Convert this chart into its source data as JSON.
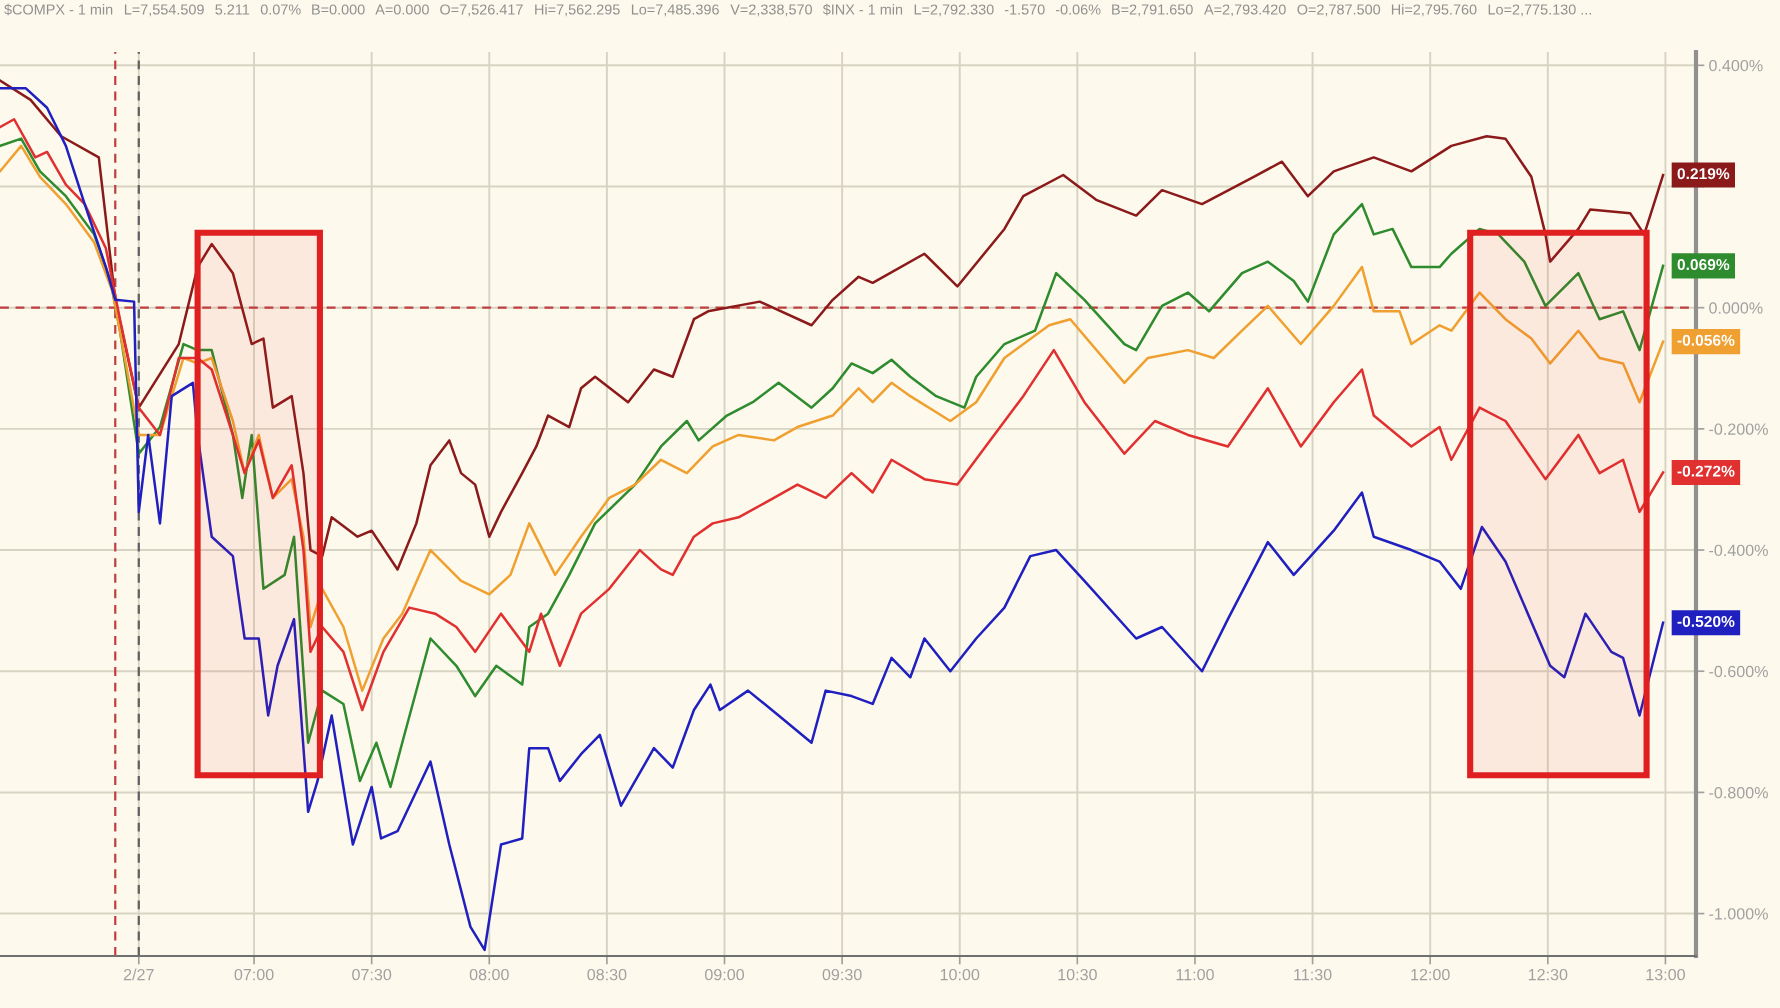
{
  "chart_data": {
    "type": "line",
    "annotations": [
      "$COMPX - 1 min",
      "L=7,554.509",
      "5.211",
      "0.07%",
      "B=0.000",
      "A=0.000",
      "O=7,526.417",
      "Hi=7,562.295",
      "Lo=7,485.396",
      "V=2,338,570",
      "$INX - 1 min",
      "L=2,792.330",
      "-1.570",
      "-0.06%",
      "B=2,791.650",
      "A=2,793.420",
      "O=2,787.500",
      "Hi=2,795.760",
      "Lo=2,775.130 ..."
    ],
    "series": [
      {
        "color": "#8b1a1a",
        "x": [
          5.92,
          6.05,
          6.18,
          6.34,
          6.41,
          6.51,
          6.68,
          6.76,
          6.82,
          6.91,
          6.99,
          7.04,
          7.08,
          7.16,
          7.21,
          7.24,
          7.29,
          7.33,
          7.44,
          7.5,
          7.61,
          7.69,
          7.75,
          7.83,
          7.88,
          7.94,
          8.0,
          8.05,
          8.14,
          8.2,
          8.25,
          8.34,
          8.39,
          8.45,
          8.59,
          8.7,
          8.78,
          8.87,
          8.93,
          9.15,
          9.37,
          9.46,
          9.57,
          9.63,
          9.85,
          9.99,
          10.19,
          10.27,
          10.44,
          10.58,
          10.75,
          10.86,
          11.03,
          11.25,
          11.37,
          11.48,
          11.59,
          11.76,
          11.92,
          12.09,
          12.24,
          12.32,
          12.43,
          12.49,
          12.51,
          12.63,
          12.68,
          12.85,
          12.91,
          12.99
        ],
        "values": [
          0.375,
          0.343,
          0.283,
          0.248,
          0.013,
          -0.165,
          -0.06,
          0.067,
          0.105,
          0.057,
          -0.06,
          -0.051,
          -0.165,
          -0.146,
          -0.273,
          -0.4,
          -0.41,
          -0.346,
          -0.378,
          -0.368,
          -0.432,
          -0.356,
          -0.26,
          -0.219,
          -0.273,
          -0.292,
          -0.378,
          -0.337,
          -0.273,
          -0.229,
          -0.178,
          -0.197,
          -0.133,
          -0.114,
          -0.156,
          -0.102,
          -0.114,
          -0.019,
          -0.006,
          0.01,
          -0.029,
          0.013,
          0.051,
          0.041,
          0.089,
          0.035,
          0.13,
          0.184,
          0.219,
          0.178,
          0.152,
          0.194,
          0.171,
          0.216,
          0.241,
          0.184,
          0.225,
          0.248,
          0.225,
          0.267,
          0.283,
          0.279,
          0.216,
          0.121,
          0.076,
          0.13,
          0.162,
          0.156,
          0.121,
          0.219
        ],
        "value_labels": [
          null,
          null,
          null,
          null,
          null,
          null,
          null,
          null,
          null,
          null,
          null,
          null,
          null,
          null,
          null,
          null,
          null,
          null,
          null,
          null,
          null,
          null,
          null,
          null,
          null,
          null,
          null,
          null,
          null,
          null,
          null,
          null,
          null,
          null,
          null,
          null,
          null,
          null,
          null,
          null,
          null,
          null,
          null,
          null,
          null,
          null,
          null,
          null,
          null,
          null,
          null,
          null,
          null,
          null,
          null,
          null,
          null,
          null,
          null,
          null,
          null,
          null,
          null,
          null,
          null,
          null,
          null,
          null,
          null,
          "0.219%"
        ]
      },
      {
        "color": "#2e8b2e",
        "x": [
          5.92,
          6.01,
          6.09,
          6.2,
          6.32,
          6.39,
          6.43,
          6.51,
          6.6,
          6.7,
          6.76,
          6.82,
          6.91,
          6.95,
          6.99,
          7.04,
          7.13,
          7.17,
          7.23,
          7.29,
          7.38,
          7.45,
          7.52,
          7.58,
          7.63,
          7.75,
          7.86,
          7.94,
          8.03,
          8.14,
          8.17,
          8.25,
          8.34,
          8.45,
          8.62,
          8.73,
          8.84,
          8.89,
          9.01,
          9.12,
          9.23,
          9.37,
          9.46,
          9.54,
          9.63,
          9.71,
          9.79,
          9.9,
          10.02,
          10.07,
          10.19,
          10.32,
          10.41,
          10.53,
          10.7,
          10.75,
          10.86,
          10.97,
          11.06,
          11.2,
          11.31,
          11.42,
          11.48,
          11.59,
          11.71,
          11.76,
          11.84,
          11.92,
          12.04,
          12.09,
          12.21,
          12.29,
          12.4,
          12.49,
          12.63,
          12.72,
          12.82,
          12.89,
          12.99
        ],
        "values": [
          0.267,
          0.279,
          0.225,
          0.184,
          0.121,
          0.044,
          -0.038,
          -0.241,
          -0.197,
          -0.06,
          -0.07,
          -0.07,
          -0.21,
          -0.314,
          -0.21,
          -0.464,
          -0.441,
          -0.378,
          -0.718,
          -0.632,
          -0.654,
          -0.781,
          -0.718,
          -0.791,
          -0.718,
          -0.546,
          -0.591,
          -0.641,
          -0.591,
          -0.622,
          -0.527,
          -0.505,
          -0.441,
          -0.356,
          -0.292,
          -0.229,
          -0.187,
          -0.219,
          -0.178,
          -0.156,
          -0.124,
          -0.165,
          -0.133,
          -0.092,
          -0.108,
          -0.086,
          -0.114,
          -0.146,
          -0.165,
          -0.114,
          -0.06,
          -0.038,
          0.057,
          0.013,
          -0.06,
          -0.07,
          0.003,
          0.025,
          -0.006,
          0.057,
          0.076,
          0.044,
          0.01,
          0.121,
          0.171,
          0.121,
          0.13,
          0.067,
          0.067,
          0.089,
          0.13,
          0.121,
          0.076,
          0.003,
          0.057,
          -0.019,
          -0.006,
          -0.07,
          0.069
        ],
        "value_labels": [
          null,
          null,
          null,
          null,
          null,
          null,
          null,
          null,
          null,
          null,
          null,
          null,
          null,
          null,
          null,
          null,
          null,
          null,
          null,
          null,
          null,
          null,
          null,
          null,
          null,
          null,
          null,
          null,
          null,
          null,
          null,
          null,
          null,
          null,
          null,
          null,
          null,
          null,
          null,
          null,
          null,
          null,
          null,
          null,
          null,
          null,
          null,
          null,
          null,
          null,
          null,
          null,
          null,
          null,
          null,
          null,
          null,
          null,
          null,
          null,
          null,
          null,
          null,
          null,
          null,
          null,
          null,
          null,
          null,
          null,
          null,
          null,
          null,
          null,
          null,
          null,
          null,
          null,
          "0.069%"
        ]
      },
      {
        "color": "#f0a030",
        "x": [
          5.92,
          6.01,
          6.09,
          6.2,
          6.32,
          6.4,
          6.51,
          6.6,
          6.7,
          6.76,
          6.82,
          6.91,
          6.96,
          7.02,
          7.08,
          7.16,
          7.21,
          7.24,
          7.29,
          7.38,
          7.46,
          7.55,
          7.63,
          7.75,
          7.88,
          8.0,
          8.09,
          8.17,
          8.28,
          8.39,
          8.51,
          8.62,
          8.73,
          8.84,
          8.95,
          9.06,
          9.21,
          9.31,
          9.46,
          9.57,
          9.63,
          9.71,
          9.79,
          9.96,
          10.07,
          10.19,
          10.38,
          10.47,
          10.7,
          10.8,
          10.97,
          11.08,
          11.2,
          11.31,
          11.45,
          11.59,
          11.71,
          11.76,
          11.87,
          11.92,
          12.04,
          12.09,
          12.21,
          12.32,
          12.43,
          12.51,
          12.63,
          12.72,
          12.82,
          12.89,
          12.99
        ],
        "values": [
          0.225,
          0.267,
          0.216,
          0.171,
          0.108,
          0.025,
          -0.21,
          -0.21,
          -0.083,
          -0.092,
          -0.083,
          -0.187,
          -0.273,
          -0.21,
          -0.314,
          -0.283,
          -0.378,
          -0.527,
          -0.464,
          -0.527,
          -0.632,
          -0.546,
          -0.505,
          -0.4,
          -0.451,
          -0.473,
          -0.441,
          -0.356,
          -0.441,
          -0.378,
          -0.314,
          -0.292,
          -0.251,
          -0.273,
          -0.229,
          -0.21,
          -0.219,
          -0.197,
          -0.178,
          -0.133,
          -0.156,
          -0.124,
          -0.146,
          -0.187,
          -0.156,
          -0.083,
          -0.029,
          -0.019,
          -0.124,
          -0.083,
          -0.07,
          -0.083,
          -0.038,
          0.003,
          -0.06,
          0.003,
          0.067,
          -0.006,
          -0.006,
          -0.06,
          -0.029,
          -0.038,
          0.025,
          -0.019,
          -0.051,
          -0.092,
          -0.038,
          -0.083,
          -0.092,
          -0.156,
          -0.056
        ],
        "value_labels": [
          null,
          null,
          null,
          null,
          null,
          null,
          null,
          null,
          null,
          null,
          null,
          null,
          null,
          null,
          null,
          null,
          null,
          null,
          null,
          null,
          null,
          null,
          null,
          null,
          null,
          null,
          null,
          null,
          null,
          null,
          null,
          null,
          null,
          null,
          null,
          null,
          null,
          null,
          null,
          null,
          null,
          null,
          null,
          null,
          null,
          null,
          null,
          null,
          null,
          null,
          null,
          null,
          null,
          null,
          null,
          null,
          null,
          null,
          null,
          null,
          null,
          null,
          null,
          null,
          null,
          null,
          null,
          null,
          null,
          null,
          "-0.056%"
        ]
      },
      {
        "color": "#e03030",
        "x": [
          5.92,
          5.98,
          6.07,
          6.12,
          6.2,
          6.28,
          6.37,
          6.43,
          6.51,
          6.6,
          6.68,
          6.76,
          6.82,
          6.91,
          6.96,
          7.02,
          7.08,
          7.16,
          7.21,
          7.24,
          7.29,
          7.38,
          7.46,
          7.55,
          7.66,
          7.77,
          7.86,
          7.94,
          8.05,
          8.17,
          8.22,
          8.3,
          8.39,
          8.51,
          8.64,
          8.73,
          8.78,
          8.87,
          8.95,
          9.06,
          9.21,
          9.31,
          9.43,
          9.54,
          9.63,
          9.71,
          9.85,
          9.99,
          10.11,
          10.27,
          10.4,
          10.53,
          10.7,
          10.83,
          10.97,
          11.14,
          11.31,
          11.45,
          11.59,
          11.71,
          11.76,
          11.92,
          12.04,
          12.09,
          12.21,
          12.32,
          12.49,
          12.63,
          12.72,
          12.82,
          12.89,
          12.99
        ],
        "values": [
          0.298,
          0.311,
          0.248,
          0.257,
          0.203,
          0.171,
          0.098,
          -0.019,
          -0.165,
          -0.21,
          -0.083,
          -0.083,
          -0.102,
          -0.21,
          -0.273,
          -0.219,
          -0.314,
          -0.26,
          -0.4,
          -0.568,
          -0.527,
          -0.568,
          -0.664,
          -0.568,
          -0.495,
          -0.505,
          -0.527,
          -0.568,
          -0.505,
          -0.568,
          -0.505,
          -0.591,
          -0.505,
          -0.464,
          -0.4,
          -0.432,
          -0.441,
          -0.378,
          -0.356,
          -0.346,
          -0.314,
          -0.292,
          -0.314,
          -0.273,
          -0.305,
          -0.251,
          -0.283,
          -0.292,
          -0.229,
          -0.146,
          -0.07,
          -0.156,
          -0.241,
          -0.187,
          -0.21,
          -0.229,
          -0.133,
          -0.229,
          -0.156,
          -0.102,
          -0.178,
          -0.229,
          -0.197,
          -0.251,
          -0.165,
          -0.187,
          -0.283,
          -0.21,
          -0.273,
          -0.251,
          -0.337,
          -0.272
        ],
        "value_labels": [
          null,
          null,
          null,
          null,
          null,
          null,
          null,
          null,
          null,
          null,
          null,
          null,
          null,
          null,
          null,
          null,
          null,
          null,
          null,
          null,
          null,
          null,
          null,
          null,
          null,
          null,
          null,
          null,
          null,
          null,
          null,
          null,
          null,
          null,
          null,
          null,
          null,
          null,
          null,
          null,
          null,
          null,
          null,
          null,
          null,
          null,
          null,
          null,
          null,
          null,
          null,
          null,
          null,
          null,
          null,
          null,
          null,
          null,
          null,
          null,
          null,
          null,
          null,
          null,
          null,
          null,
          null,
          null,
          null,
          null,
          null,
          "-0.272%"
        ]
      },
      {
        "color": "#2020c0",
        "x": [
          5.92,
          6.03,
          6.12,
          6.2,
          6.28,
          6.37,
          6.41,
          6.49,
          6.51,
          6.55,
          6.6,
          6.65,
          6.74,
          6.76,
          6.82,
          6.91,
          6.96,
          7.02,
          7.06,
          7.1,
          7.17,
          7.23,
          7.27,
          7.33,
          7.42,
          7.5,
          7.54,
          7.61,
          7.75,
          7.83,
          7.92,
          7.98,
          8.05,
          8.14,
          8.17,
          8.25,
          8.3,
          8.39,
          8.47,
          8.56,
          8.7,
          8.78,
          8.87,
          8.94,
          8.98,
          9.1,
          9.23,
          9.37,
          9.43,
          9.54,
          9.63,
          9.71,
          9.79,
          9.85,
          9.96,
          10.07,
          10.19,
          10.3,
          10.41,
          10.53,
          10.75,
          10.86,
          11.03,
          11.14,
          11.31,
          11.42,
          11.59,
          11.71,
          11.76,
          11.92,
          12.04,
          12.13,
          12.22,
          12.32,
          12.51,
          12.57,
          12.66,
          12.77,
          12.82,
          12.89,
          12.99
        ],
        "values": [
          0.362,
          0.362,
          0.33,
          0.267,
          0.171,
          0.067,
          0.013,
          0.01,
          -0.337,
          -0.21,
          -0.356,
          -0.146,
          -0.124,
          -0.21,
          -0.378,
          -0.41,
          -0.546,
          -0.546,
          -0.673,
          -0.591,
          -0.514,
          -0.832,
          -0.781,
          -0.673,
          -0.886,
          -0.791,
          -0.876,
          -0.864,
          -0.749,
          -0.886,
          -1.022,
          -1.06,
          -0.886,
          -0.876,
          -0.727,
          -0.727,
          -0.781,
          -0.737,
          -0.705,
          -0.822,
          -0.727,
          -0.759,
          -0.664,
          -0.622,
          -0.664,
          -0.632,
          -0.673,
          -0.718,
          -0.632,
          -0.641,
          -0.654,
          -0.578,
          -0.61,
          -0.546,
          -0.6,
          -0.546,
          -0.495,
          -0.41,
          -0.4,
          -0.451,
          -0.546,
          -0.527,
          -0.6,
          -0.514,
          -0.387,
          -0.441,
          -0.368,
          -0.305,
          -0.378,
          -0.4,
          -0.419,
          -0.464,
          -0.362,
          -0.419,
          -0.591,
          -0.61,
          -0.505,
          -0.568,
          -0.578,
          -0.673,
          -0.52
        ],
        "value_labels": [
          null,
          null,
          null,
          null,
          null,
          null,
          null,
          null,
          null,
          null,
          null,
          null,
          null,
          null,
          null,
          null,
          null,
          null,
          null,
          null,
          null,
          null,
          null,
          null,
          null,
          null,
          null,
          null,
          null,
          null,
          null,
          null,
          null,
          null,
          null,
          null,
          null,
          null,
          null,
          null,
          null,
          null,
          null,
          null,
          null,
          null,
          null,
          null,
          null,
          null,
          null,
          null,
          null,
          null,
          null,
          null,
          null,
          null,
          null,
          null,
          null,
          null,
          null,
          null,
          null,
          null,
          null,
          null,
          null,
          null,
          null,
          null,
          null,
          null,
          null,
          null,
          null,
          null,
          null,
          null,
          "-0.520%"
        ]
      }
    ],
    "xlim": [
      5.92,
      13.13
    ],
    "xticks": [
      {
        "value": 6.51,
        "label": "2/27"
      },
      {
        "value": 7,
        "label": "07:00"
      },
      {
        "value": 7.5,
        "label": "07:30"
      },
      {
        "value": 8,
        "label": "08:00"
      },
      {
        "value": 8.5,
        "label": "08:30"
      },
      {
        "value": 9,
        "label": "09:00"
      },
      {
        "value": 9.5,
        "label": "09:30"
      },
      {
        "value": 10,
        "label": "10:00"
      },
      {
        "value": 10.5,
        "label": "10:30"
      },
      {
        "value": 11,
        "label": "11:00"
      },
      {
        "value": 11.5,
        "label": "11:30"
      },
      {
        "value": 12,
        "label": "12:00"
      },
      {
        "value": 12.5,
        "label": "12:30"
      },
      {
        "value": 13,
        "label": "13:00"
      }
    ],
    "ylim": [
      -1.07,
      0.422
    ],
    "yticks": [
      {
        "value": 0.4,
        "label": "0.400%"
      },
      {
        "value": 0.2,
        "label": null
      },
      {
        "value": 0,
        "label": "0.000%"
      },
      {
        "value": -0.2,
        "label": "-0.200%"
      },
      {
        "value": -0.4,
        "label": "-0.400%"
      },
      {
        "value": -0.6,
        "label": "-0.600%"
      },
      {
        "value": -0.8,
        "label": "-0.800%"
      },
      {
        "value": -1.0,
        "label": "-1.000%"
      }
    ],
    "ref_lines": [
      {
        "axis": "y",
        "value": 0,
        "color": "#c04040",
        "line_style": "dashed"
      },
      {
        "axis": "x",
        "value": 6.41,
        "color": "#c04040",
        "line_style": "dashed"
      },
      {
        "axis": "x",
        "value": 6.51,
        "color": "#606060",
        "line_style": "dashed"
      }
    ],
    "bands": [
      {
        "axis": "x",
        "from": 6.76,
        "to": 7.28,
        "color": "#e02020"
      },
      {
        "axis": "x",
        "from": 12.17,
        "to": 12.92,
        "color": "#e02020"
      }
    ],
    "grid": true,
    "legend": false
  }
}
